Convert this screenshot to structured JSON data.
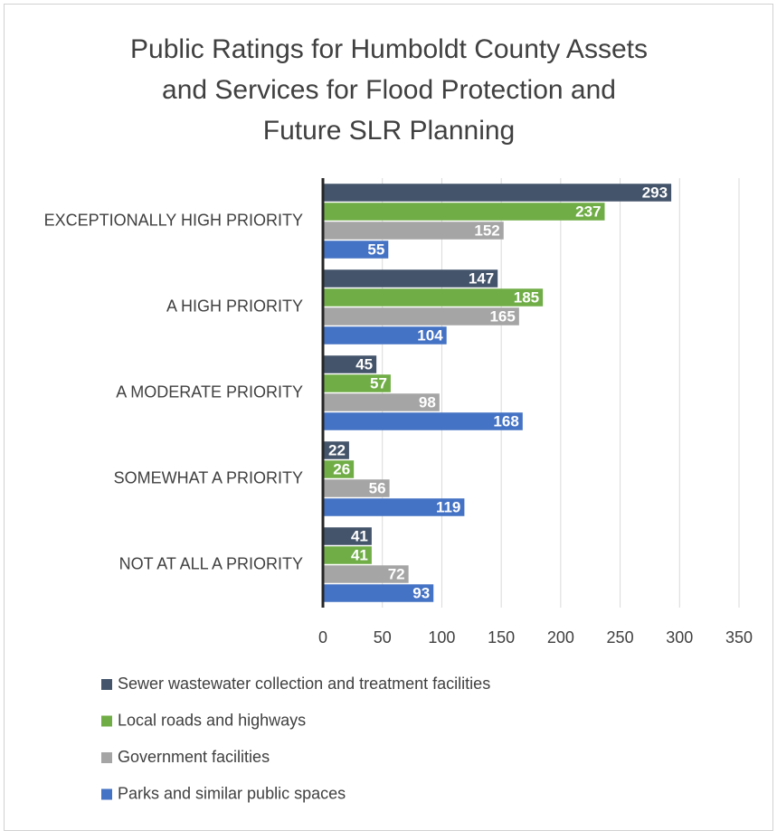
{
  "chart_data": {
    "type": "barh",
    "title": [
      "Public Ratings for Humboldt County Assets",
      "and Services for Flood Protection and",
      "Future SLR Planning"
    ],
    "categories": [
      "EXCEPTIONALLY HIGH PRIORITY",
      "A HIGH PRIORITY",
      "A MODERATE PRIORITY",
      "SOMEWHAT A PRIORITY",
      "NOT AT ALL A PRIORITY"
    ],
    "series": [
      {
        "name": "Sewer wastewater collection and treatment facilities",
        "color": "#44546a",
        "values": [
          293,
          147,
          45,
          22,
          41
        ]
      },
      {
        "name": "Local roads and highways",
        "color": "#70ad47",
        "values": [
          237,
          185,
          57,
          26,
          41
        ]
      },
      {
        "name": "Government facilities",
        "color": "#a5a5a5",
        "values": [
          152,
          165,
          98,
          56,
          72
        ]
      },
      {
        "name": "Parks and similar public spaces",
        "color": "#4472c4",
        "values": [
          55,
          104,
          168,
          119,
          93
        ]
      }
    ],
    "xlim": [
      0,
      350
    ],
    "xticks": [
      0,
      50,
      100,
      150,
      200,
      250,
      300,
      350
    ],
    "grid": true,
    "legend": "bottom"
  }
}
